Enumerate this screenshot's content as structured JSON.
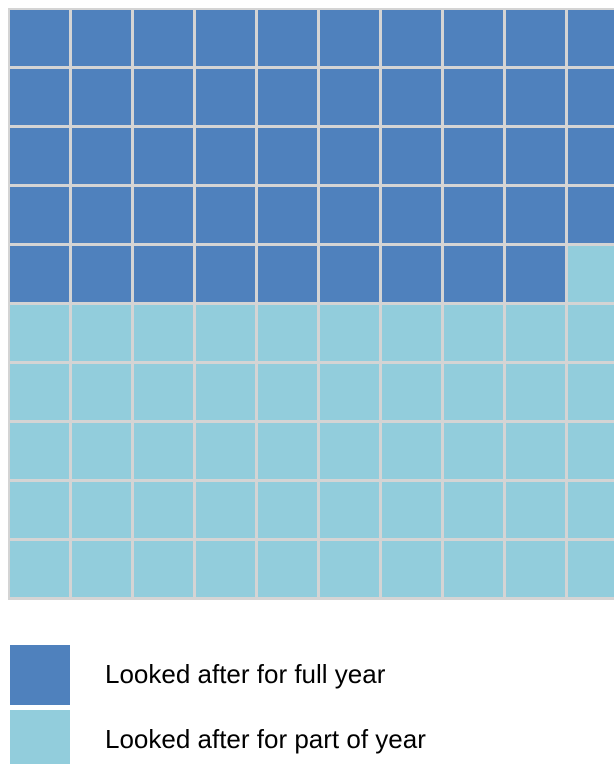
{
  "chart_data": {
    "type": "waffle",
    "rows": 10,
    "columns": 10,
    "series": [
      {
        "name": "Looked after for full year",
        "color": "#4f81bd",
        "values": 49
      },
      {
        "name": "Looked after for part of year",
        "color": "#92cddc",
        "values": 51
      }
    ]
  }
}
